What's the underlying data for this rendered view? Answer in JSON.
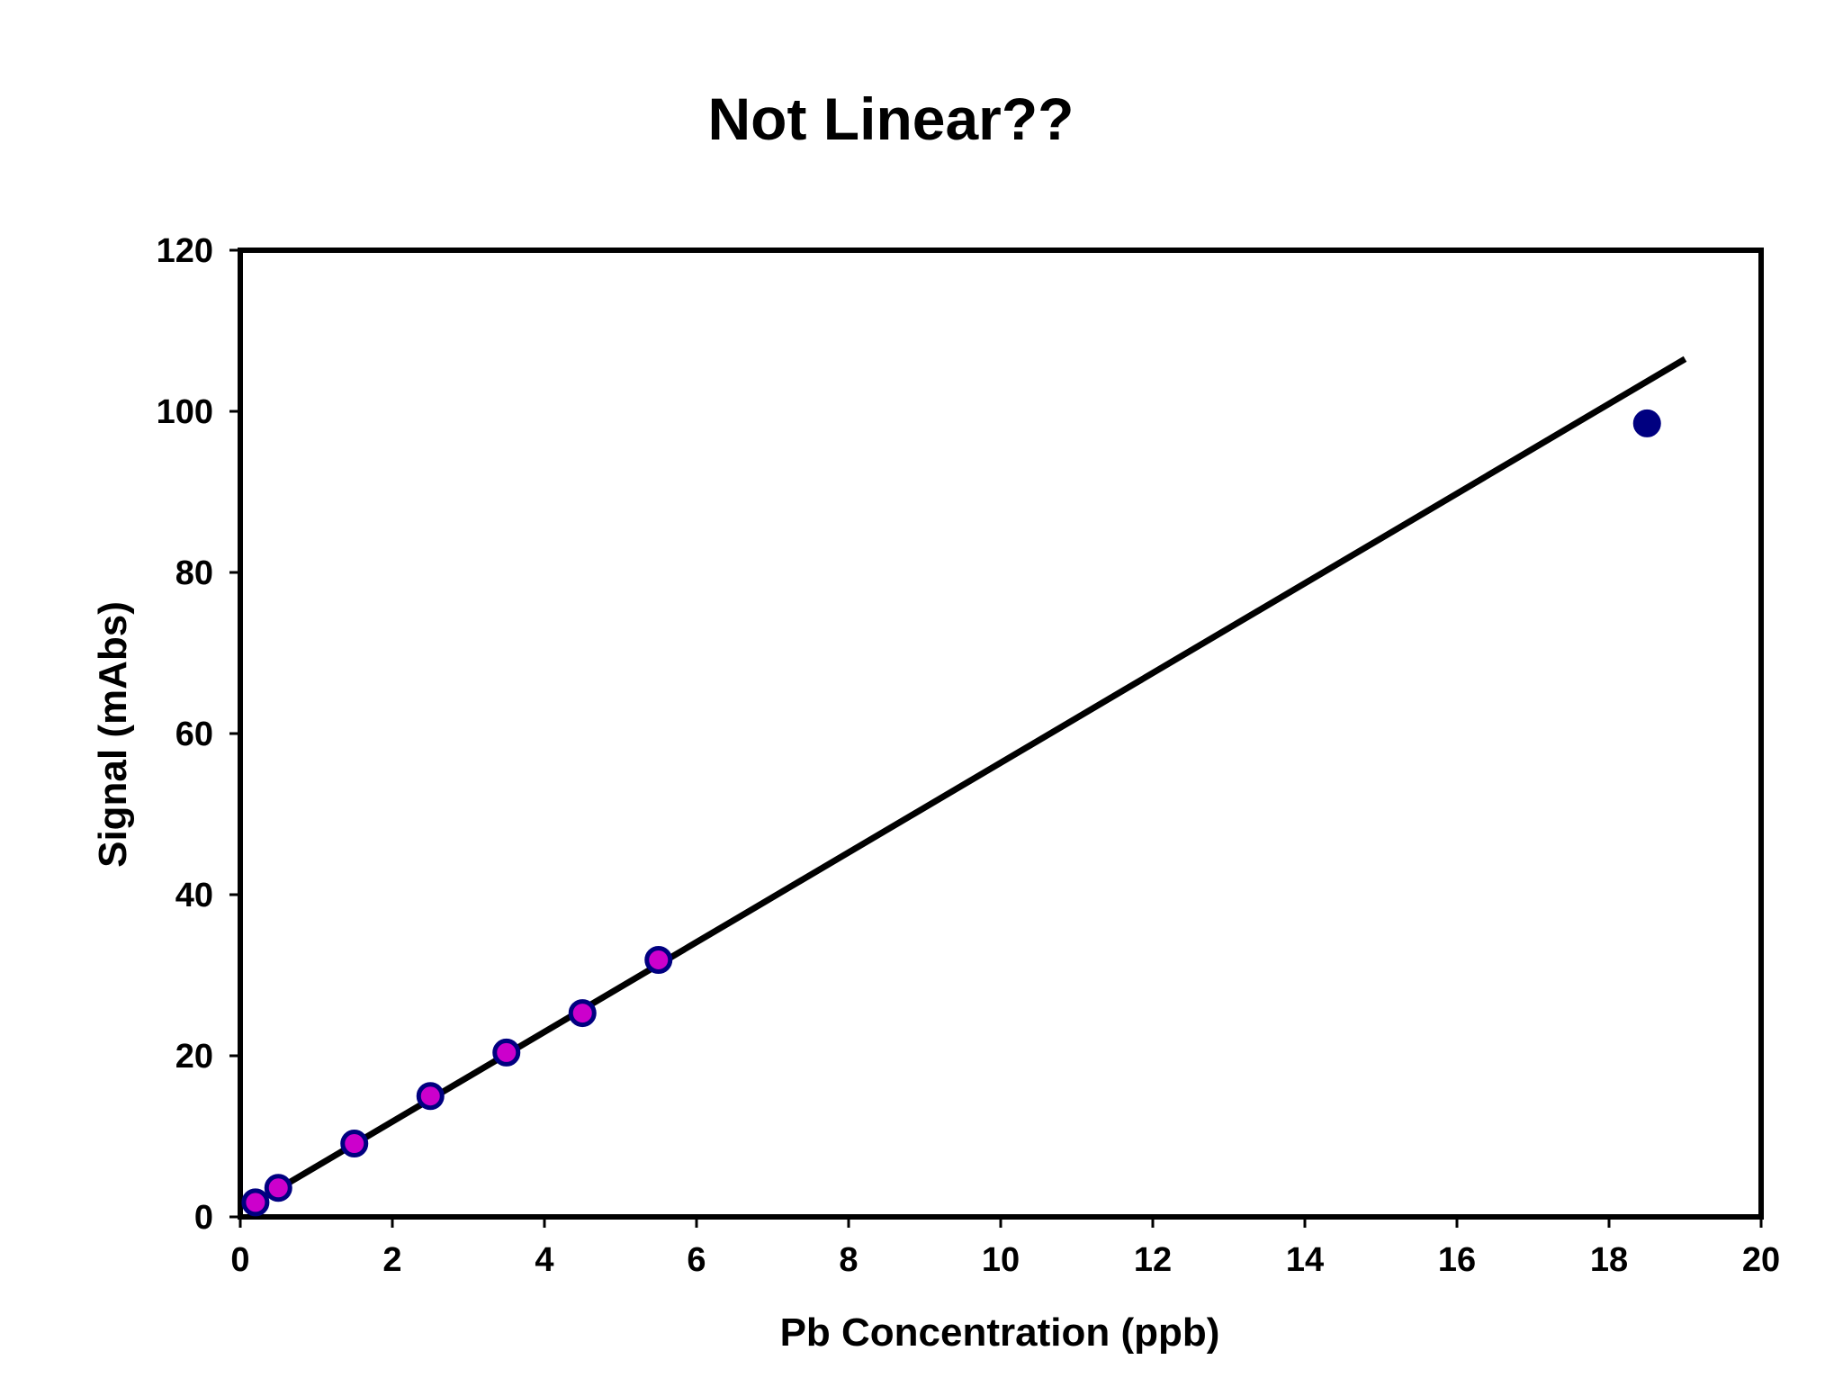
{
  "chart_data": {
    "type": "scatter",
    "title": "Not Linear??",
    "xlabel": "Pb Concentration (ppb)",
    "ylabel": "Signal (mAbs)",
    "xlim": [
      0,
      20
    ],
    "ylim": [
      0,
      120
    ],
    "xticks": [
      0,
      2,
      4,
      6,
      8,
      10,
      12,
      14,
      16,
      18,
      20
    ],
    "yticks": [
      0,
      20,
      40,
      60,
      80,
      100,
      120
    ],
    "grid": false,
    "legend": "none",
    "series": [
      {
        "marker_fill": "#cc00cc",
        "marker_edge": "#000080",
        "points": [
          {
            "x": 0.2,
            "y": 1.8
          },
          {
            "x": 0.5,
            "y": 3.6
          },
          {
            "x": 1.5,
            "y": 9.1
          },
          {
            "x": 2.5,
            "y": 15.0
          },
          {
            "x": 3.5,
            "y": 20.4
          },
          {
            "x": 4.5,
            "y": 25.3
          },
          {
            "x": 5.5,
            "y": 31.9
          }
        ]
      },
      {
        "marker_fill": "#000080",
        "marker_edge": "#000080",
        "points": [
          {
            "x": 18.5,
            "y": 98.5
          }
        ]
      }
    ],
    "trendline": {
      "color": "#000000",
      "from": {
        "x": 0.2,
        "y": 1.8
      },
      "to": {
        "x": 19.0,
        "y": 106.5
      }
    }
  }
}
